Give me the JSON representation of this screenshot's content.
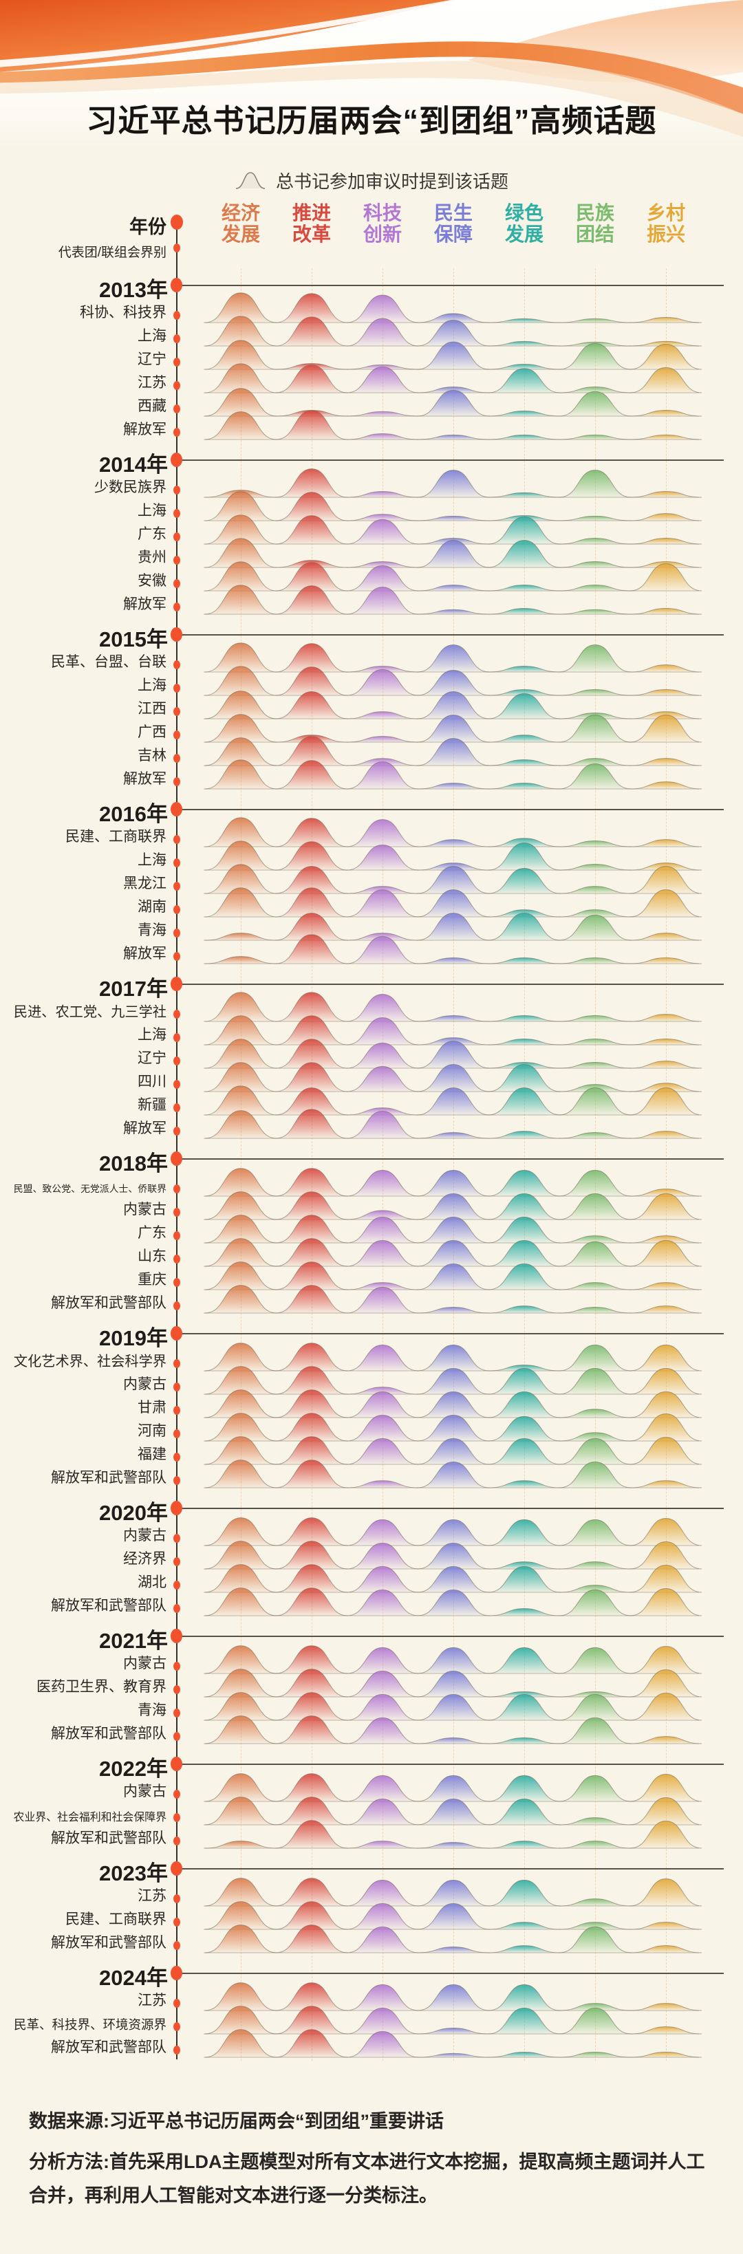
{
  "title": "习近平总书记历届两会“到团组”高频话题",
  "legend": {
    "label": "总书记参加审议时提到该话题"
  },
  "axis": {
    "year": "年份",
    "delegation": "代表团/联组会界别"
  },
  "footer": {
    "source": "数据来源:习近平总书记历届两会“到团组”重要讲话",
    "method": "分析方法:首先采用LDA主题模型对所有文本进行文本挖掘，提取高频主题词并人工合并，再利用人工智能对文本进行逐一分类标注。"
  },
  "colors": {
    "background": "#F8F4E8",
    "accent_dot": "#F2512E",
    "timeline": "#35322C",
    "ribbon_orange": "#EE6A24"
  },
  "chart_data": {
    "type": "ridgeline-matrix",
    "title": "习近平总书记历届两会“到团组”高频话题",
    "legend": "总书记参加审议时提到该话题",
    "value_note": "0-100 relative peak height of each topic ridge; ~85 = prominent topic, ~20 = minor bump",
    "topics": [
      {
        "label": "经济发展",
        "line1": "经济",
        "line2": "发展",
        "color": "#DB7B4B"
      },
      {
        "label": "推进改革",
        "line1": "推进",
        "line2": "改革",
        "color": "#D8493F"
      },
      {
        "label": "科技创新",
        "line1": "科技",
        "line2": "创新",
        "color": "#B277D2"
      },
      {
        "label": "民生保障",
        "line1": "民生",
        "line2": "保障",
        "color": "#7B7ED6"
      },
      {
        "label": "绿色发展",
        "line1": "绿色",
        "line2": "发展",
        "color": "#2FAEA3"
      },
      {
        "label": "民族团结",
        "line1": "民族",
        "line2": "团结",
        "color": "#7ABB6E"
      },
      {
        "label": "乡村振兴",
        "line1": "乡村",
        "line2": "振兴",
        "color": "#E3A838"
      }
    ],
    "groups": [
      {
        "year": "2013年",
        "rows": [
          {
            "label": "科协、科技界",
            "values": [
              92,
              90,
              85,
              28,
              12,
              12,
              16
            ]
          },
          {
            "label": "上海",
            "values": [
              92,
              90,
              85,
              80,
              14,
              12,
              14
            ]
          },
          {
            "label": "辽宁",
            "values": [
              90,
              18,
              14,
              85,
              16,
              80,
              78
            ]
          },
          {
            "label": "江苏",
            "values": [
              90,
              86,
              80,
              18,
              75,
              18,
              78
            ]
          },
          {
            "label": "西藏",
            "values": [
              86,
              18,
              14,
              80,
              16,
              76,
              18
            ]
          },
          {
            "label": "解放军",
            "values": [
              86,
              90,
              18,
              14,
              14,
              14,
              14
            ]
          }
        ]
      },
      {
        "year": "2014年",
        "rows": [
          {
            "label": "少数民族界",
            "values": [
              22,
              88,
              18,
              84,
              14,
              84,
              18
            ]
          },
          {
            "label": "上海",
            "values": [
              90,
              88,
              20,
              14,
              16,
              14,
              22
            ]
          },
          {
            "label": "广东",
            "values": [
              90,
              88,
              76,
              18,
              84,
              18,
              18
            ]
          },
          {
            "label": "贵州",
            "values": [
              90,
              22,
              18,
              84,
              84,
              18,
              18
            ]
          },
          {
            "label": "安徽",
            "values": [
              90,
              88,
              78,
              18,
              18,
              18,
              84
            ]
          },
          {
            "label": "解放军",
            "values": [
              90,
              88,
              84,
              14,
              18,
              14,
              18
            ]
          }
        ]
      },
      {
        "year": "2015年",
        "rows": [
          {
            "label": "民革、台盟、台联",
            "values": [
              90,
              88,
              18,
              84,
              18,
              84,
              22
            ]
          },
          {
            "label": "上海",
            "values": [
              90,
              88,
              80,
              78,
              18,
              18,
              18
            ]
          },
          {
            "label": "江西",
            "values": [
              86,
              84,
              22,
              84,
              78,
              18,
              22
            ]
          },
          {
            "label": "广西",
            "values": [
              86,
              22,
              18,
              84,
              22,
              84,
              84
            ]
          },
          {
            "label": "吉林",
            "values": [
              86,
              90,
              22,
              84,
              18,
              22,
              22
            ]
          },
          {
            "label": "解放军",
            "values": [
              90,
              88,
              84,
              18,
              18,
              78,
              22
            ]
          }
        ]
      },
      {
        "year": "2016年",
        "rows": [
          {
            "label": "民建、工商联界",
            "values": [
              90,
              88,
              84,
              22,
              26,
              18,
              22
            ]
          },
          {
            "label": "上海",
            "values": [
              90,
              88,
              78,
              22,
              84,
              18,
              22
            ]
          },
          {
            "label": "黑龙江",
            "values": [
              90,
              84,
              22,
              84,
              78,
              22,
              84
            ]
          },
          {
            "label": "湖南",
            "values": [
              90,
              90,
              84,
              84,
              22,
              22,
              84
            ]
          },
          {
            "label": "青海",
            "values": [
              22,
              84,
              22,
              84,
              84,
              78,
              22
            ]
          },
          {
            "label": "解放军",
            "values": [
              22,
              90,
              84,
              18,
              18,
              18,
              18
            ]
          }
        ]
      },
      {
        "year": "2017年",
        "rows": [
          {
            "label": "民进、农工党、九三学社",
            "values": [
              90,
              90,
              84,
              18,
              18,
              18,
              22
            ]
          },
          {
            "label": "上海",
            "values": [
              90,
              90,
              84,
              22,
              18,
              18,
              18
            ]
          },
          {
            "label": "辽宁",
            "values": [
              90,
              90,
              78,
              84,
              18,
              18,
              22
            ]
          },
          {
            "label": "四川",
            "values": [
              90,
              90,
              78,
              84,
              84,
              22,
              26
            ]
          },
          {
            "label": "新疆",
            "values": [
              90,
              84,
              22,
              84,
              84,
              84,
              84
            ]
          },
          {
            "label": "解放军",
            "values": [
              86,
              90,
              84,
              18,
              22,
              18,
              22
            ]
          }
        ]
      },
      {
        "year": "2018年",
        "rows": [
          {
            "label": "民盟、致公党、无党派人士、侨联界",
            "values": [
              86,
              86,
              80,
              80,
              80,
              80,
              22
            ]
          },
          {
            "label": "内蒙古",
            "values": [
              86,
              86,
              28,
              80,
              80,
              80,
              80
            ]
          },
          {
            "label": "广东",
            "values": [
              86,
              86,
              80,
              80,
              80,
              22,
              22
            ]
          },
          {
            "label": "山东",
            "values": [
              86,
              86,
              80,
              80,
              80,
              76,
              80
            ]
          },
          {
            "label": "重庆",
            "values": [
              86,
              86,
              22,
              80,
              80,
              22,
              22
            ]
          },
          {
            "label": "解放军和武警部队",
            "values": [
              86,
              86,
              80,
              18,
              22,
              18,
              22
            ]
          }
        ]
      },
      {
        "year": "2019年",
        "rows": [
          {
            "label": "文化艺术界、社会科学界",
            "values": [
              86,
              86,
              80,
              80,
              18,
              80,
              80
            ]
          },
          {
            "label": "内蒙古",
            "values": [
              86,
              86,
              22,
              80,
              80,
              80,
              80
            ]
          },
          {
            "label": "甘肃",
            "values": [
              86,
              86,
              80,
              80,
              80,
              26,
              80
            ]
          },
          {
            "label": "河南",
            "values": [
              86,
              86,
              80,
              80,
              76,
              26,
              84
            ]
          },
          {
            "label": "福建",
            "values": [
              86,
              86,
              80,
              80,
              80,
              80,
              84
            ]
          },
          {
            "label": "解放军和武警部队",
            "values": [
              86,
              86,
              22,
              80,
              22,
              80,
              22
            ]
          }
        ]
      },
      {
        "year": "2020年",
        "rows": [
          {
            "label": "内蒙古",
            "values": [
              86,
              86,
              80,
              80,
              80,
              80,
              84
            ]
          },
          {
            "label": "经济界",
            "values": [
              86,
              86,
              80,
              80,
              22,
              22,
              84
            ]
          },
          {
            "label": "湖北",
            "values": [
              86,
              86,
              80,
              80,
              80,
              22,
              84
            ]
          },
          {
            "label": "解放军和武警部队",
            "values": [
              86,
              86,
              80,
              80,
              22,
              80,
              84
            ]
          }
        ]
      },
      {
        "year": "2021年",
        "rows": [
          {
            "label": "内蒙古",
            "values": [
              86,
              86,
              80,
              80,
              80,
              80,
              84
            ]
          },
          {
            "label": "医药卫生界、教育界",
            "values": [
              86,
              86,
              80,
              80,
              16,
              16,
              84
            ]
          },
          {
            "label": "青海",
            "values": [
              86,
              86,
              80,
              80,
              80,
              80,
              84
            ]
          },
          {
            "label": "解放军和武警部队",
            "values": [
              86,
              86,
              80,
              18,
              18,
              80,
              22
            ]
          }
        ]
      },
      {
        "year": "2022年",
        "rows": [
          {
            "label": "内蒙古",
            "values": [
              86,
              86,
              80,
              80,
              80,
              80,
              84
            ]
          },
          {
            "label": "农业界、社会福利和社会保障界",
            "values": [
              86,
              86,
              80,
              80,
              80,
              22,
              84
            ]
          },
          {
            "label": "解放军和武警部队",
            "values": [
              22,
              86,
              22,
              18,
              22,
              22,
              84
            ]
          }
        ]
      },
      {
        "year": "2023年",
        "rows": [
          {
            "label": "江苏",
            "values": [
              86,
              86,
              80,
              80,
              80,
              22,
              84
            ]
          },
          {
            "label": "民建、工商联界",
            "values": [
              86,
              86,
              80,
              80,
              22,
              22,
              22
            ]
          },
          {
            "label": "解放军和武警部队",
            "values": [
              86,
              86,
              80,
              18,
              22,
              80,
              22
            ]
          }
        ]
      },
      {
        "year": "2024年",
        "rows": [
          {
            "label": "江苏",
            "values": [
              86,
              86,
              80,
              80,
              80,
              22,
              22
            ]
          },
          {
            "label": "民革、科技界、环境资源界",
            "values": [
              86,
              86,
              80,
              18,
              80,
              80,
              22
            ]
          },
          {
            "label": "解放军和武警部队",
            "values": [
              86,
              86,
              80,
              12,
              16,
              16,
              16
            ]
          }
        ]
      }
    ]
  }
}
